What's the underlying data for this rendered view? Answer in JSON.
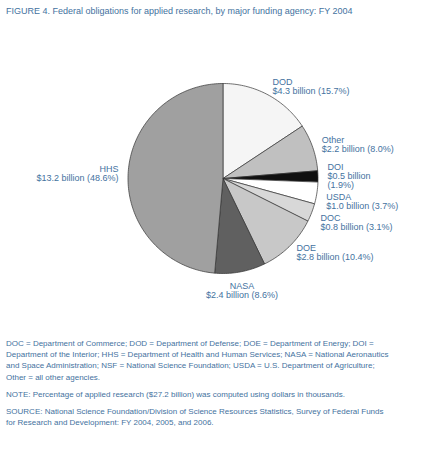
{
  "chart_data": {
    "type": "pie",
    "title": "FIGURE 4.  Federal obligations for applied research, by major funding agency: FY 2004",
    "categories": [
      "DOD",
      "Other",
      "DOI",
      "USDA",
      "DOC",
      "DOE",
      "NASA",
      "HHS"
    ],
    "values": [
      15.7,
      8.0,
      1.9,
      3.7,
      3.1,
      10.4,
      8.6,
      48.6
    ],
    "value_labels": [
      "$4.3 billion (15.7%)",
      "$2.2 billion (8.0%)",
      "$0.5 billion\n(1.9%)",
      "$1.0 billion (3.7%)",
      "$0.8 billion (3.1%)",
      "$2.8 billion (10.4%)",
      "$2.4 billion (8.6%)",
      "$13.2 billion (48.6%)"
    ],
    "colors": [
      "#f5f5f5",
      "#c0c0c0",
      "#101010",
      "#ffffff",
      "#d8d8d8",
      "#c8c8c8",
      "#606060",
      "#a0a0a0"
    ],
    "data_labels": true,
    "color": "#4472a0",
    "notes": [
      [
        "DOC = Department of Commerce; DOD = Department of Defense; DOE = Department of Energy; DOI =",
        "Department of the Interior; HHS = Department of Health and Human Services; NASA = National Aeronautics",
        "and Space Administration; NSF = National Science Foundation; USDA = U.S. Department of Agriculture;",
        "Other = all other agencies."
      ],
      [
        "NOTE: Percentage of applied research ($27.2 billion) was computed using dollars in thousands."
      ],
      [
        "SOURCE:  National Science Foundation/Division of Science Resources Statistics, Survey of Federal Funds",
        "for Research and Development: FY 2004, 2005, and 2006."
      ]
    ]
  }
}
